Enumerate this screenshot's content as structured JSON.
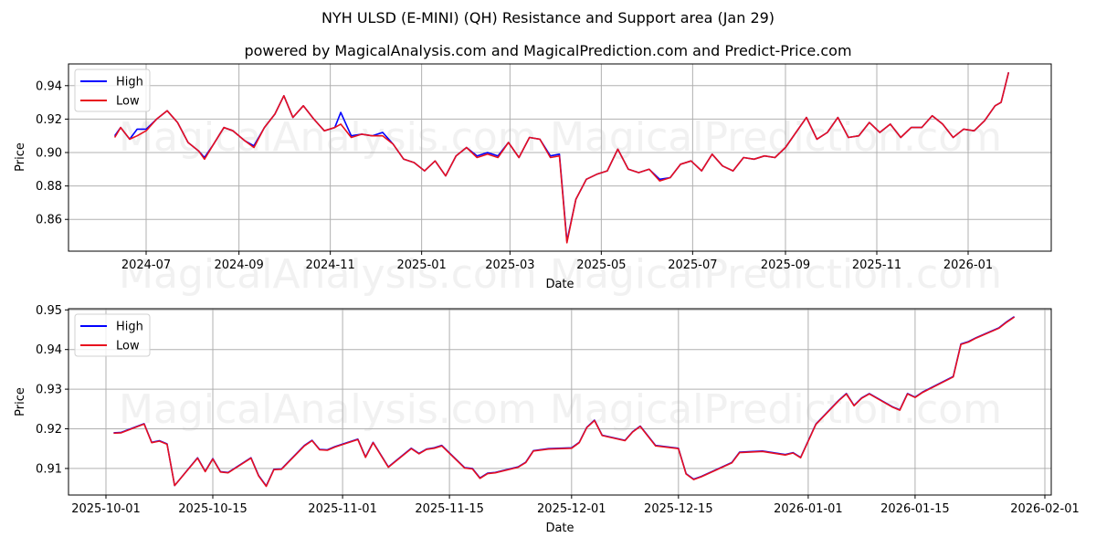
{
  "title": "NYH ULSD (E-MINI) (QH) Resistance and Support area (Jan 29)",
  "subtitle": "powered by MagicalAnalysis.com and MagicalPrediction.com and Predict-Price.com",
  "watermarks": [
    "MagicalAnalysis.com",
    "MagicalPrediction.com"
  ],
  "colors": {
    "high": "#0000ff",
    "low": "#e8101e",
    "grid": "#b0b0b0"
  },
  "legend": {
    "high": "High",
    "low": "Low"
  },
  "chart_data": [
    {
      "type": "line",
      "title": "NYH ULSD (E-MINI) (QH) Resistance and Support area (Jan 29)",
      "xlabel": "Date",
      "ylabel": "Price",
      "ylim": [
        0.841,
        0.953
      ],
      "yticks": [
        "0.86",
        "0.88",
        "0.90",
        "0.92",
        "0.94"
      ],
      "xticks": [
        "2024-07",
        "2024-09",
        "2024-11",
        "2025-01",
        "2025-03",
        "2025-05",
        "2025-07",
        "2025-09",
        "2025-11",
        "2026-01"
      ],
      "grid": true,
      "legend_position": "upper left",
      "x": [
        "2024-06-10",
        "2024-06-14",
        "2024-06-20",
        "2024-06-25",
        "2024-07-01",
        "2024-07-08",
        "2024-07-15",
        "2024-07-22",
        "2024-07-29",
        "2024-08-05",
        "2024-08-09",
        "2024-08-15",
        "2024-08-22",
        "2024-08-28",
        "2024-09-05",
        "2024-09-11",
        "2024-09-18",
        "2024-09-25",
        "2024-10-01",
        "2024-10-07",
        "2024-10-14",
        "2024-10-21",
        "2024-10-28",
        "2024-11-04",
        "2024-11-08",
        "2024-11-15",
        "2024-11-22",
        "2024-11-29",
        "2024-12-06",
        "2024-12-13",
        "2024-12-20",
        "2024-12-27",
        "2025-01-03",
        "2025-01-10",
        "2025-01-17",
        "2025-01-24",
        "2025-01-31",
        "2025-02-07",
        "2025-02-14",
        "2025-02-21",
        "2025-02-28",
        "2025-03-07",
        "2025-03-14",
        "2025-03-21",
        "2025-03-28",
        "2025-04-03",
        "2025-04-08",
        "2025-04-14",
        "2025-04-21",
        "2025-04-28",
        "2025-05-05",
        "2025-05-12",
        "2025-05-19",
        "2025-05-26",
        "2025-06-02",
        "2025-06-09",
        "2025-06-16",
        "2025-06-23",
        "2025-06-30",
        "2025-07-07",
        "2025-07-14",
        "2025-07-21",
        "2025-07-28",
        "2025-08-04",
        "2025-08-11",
        "2025-08-18",
        "2025-08-25",
        "2025-09-01",
        "2025-09-08",
        "2025-09-15",
        "2025-09-22",
        "2025-09-29",
        "2025-10-06",
        "2025-10-13",
        "2025-10-20",
        "2025-10-27",
        "2025-11-03",
        "2025-11-10",
        "2025-11-17",
        "2025-11-24",
        "2025-12-01",
        "2025-12-08",
        "2025-12-15",
        "2025-12-22",
        "2025-12-29",
        "2026-01-05",
        "2026-01-12",
        "2026-01-19",
        "2026-01-23",
        "2026-01-28"
      ],
      "series": [
        {
          "name": "High",
          "values": [
            0.91,
            0.915,
            0.908,
            0.914,
            0.914,
            0.92,
            0.925,
            0.918,
            0.906,
            0.901,
            0.897,
            0.905,
            0.915,
            0.913,
            0.907,
            0.904,
            0.915,
            0.923,
            0.934,
            0.921,
            0.928,
            0.92,
            0.913,
            0.915,
            0.924,
            0.91,
            0.911,
            0.91,
            0.912,
            0.905,
            0.896,
            0.894,
            0.889,
            0.895,
            0.886,
            0.898,
            0.903,
            0.898,
            0.9,
            0.898,
            0.906,
            0.897,
            0.909,
            0.908,
            0.898,
            0.899,
            0.847,
            0.872,
            0.884,
            0.887,
            0.889,
            0.902,
            0.89,
            0.888,
            0.89,
            0.884,
            0.885,
            0.893,
            0.895,
            0.889,
            0.899,
            0.892,
            0.889,
            0.897,
            0.896,
            0.898,
            0.897,
            0.903,
            0.912,
            0.921,
            0.908,
            0.912,
            0.921,
            0.909,
            0.91,
            0.918,
            0.912,
            0.917,
            0.909,
            0.915,
            0.915,
            0.922,
            0.917,
            0.909,
            0.914,
            0.913,
            0.919,
            0.928,
            0.93,
            0.948
          ]
        },
        {
          "name": "Low",
          "values": [
            0.909,
            0.915,
            0.908,
            0.91,
            0.913,
            0.92,
            0.925,
            0.918,
            0.906,
            0.901,
            0.896,
            0.905,
            0.915,
            0.913,
            0.907,
            0.903,
            0.915,
            0.923,
            0.934,
            0.921,
            0.928,
            0.92,
            0.913,
            0.915,
            0.917,
            0.909,
            0.911,
            0.91,
            0.91,
            0.905,
            0.896,
            0.894,
            0.889,
            0.895,
            0.886,
            0.898,
            0.903,
            0.897,
            0.899,
            0.897,
            0.906,
            0.897,
            0.909,
            0.908,
            0.897,
            0.898,
            0.846,
            0.872,
            0.884,
            0.887,
            0.889,
            0.902,
            0.89,
            0.888,
            0.89,
            0.883,
            0.885,
            0.893,
            0.895,
            0.889,
            0.899,
            0.892,
            0.889,
            0.897,
            0.896,
            0.898,
            0.897,
            0.903,
            0.912,
            0.921,
            0.908,
            0.912,
            0.921,
            0.909,
            0.91,
            0.918,
            0.912,
            0.917,
            0.909,
            0.915,
            0.915,
            0.922,
            0.917,
            0.909,
            0.914,
            0.913,
            0.919,
            0.928,
            0.93,
            0.948
          ]
        }
      ]
    },
    {
      "type": "line",
      "xlabel": "Date",
      "ylabel": "Price",
      "ylim": [
        0.9033,
        0.9503
      ],
      "yticks": [
        "0.91",
        "0.92",
        "0.93",
        "0.94",
        "0.95"
      ],
      "xticks": [
        "2025-10-01",
        "2025-10-15",
        "2025-11-01",
        "2025-11-15",
        "2025-12-01",
        "2025-12-15",
        "2026-01-01",
        "2026-01-15",
        "2026-02-01"
      ],
      "grid": true,
      "legend_position": "upper left",
      "x": [
        "2025-10-02",
        "2025-10-03",
        "2025-10-06",
        "2025-10-07",
        "2025-10-08",
        "2025-10-09",
        "2025-10-10",
        "2025-10-13",
        "2025-10-14",
        "2025-10-15",
        "2025-10-16",
        "2025-10-17",
        "2025-10-20",
        "2025-10-21",
        "2025-10-22",
        "2025-10-23",
        "2025-10-24",
        "2025-10-27",
        "2025-10-28",
        "2025-10-29",
        "2025-10-30",
        "2025-10-31",
        "2025-11-03",
        "2025-11-04",
        "2025-11-05",
        "2025-11-07",
        "2025-11-10",
        "2025-11-11",
        "2025-11-12",
        "2025-11-13",
        "2025-11-14",
        "2025-11-17",
        "2025-11-18",
        "2025-11-19",
        "2025-11-20",
        "2025-11-21",
        "2025-11-24",
        "2025-11-25",
        "2025-11-26",
        "2025-11-28",
        "2025-12-01",
        "2025-12-02",
        "2025-12-03",
        "2025-12-04",
        "2025-12-05",
        "2025-12-08",
        "2025-12-09",
        "2025-12-10",
        "2025-12-12",
        "2025-12-15",
        "2025-12-16",
        "2025-12-17",
        "2025-12-18",
        "2025-12-22",
        "2025-12-23",
        "2025-12-26",
        "2025-12-29",
        "2025-12-30",
        "2025-12-31",
        "2026-01-02",
        "2026-01-05",
        "2026-01-06",
        "2026-01-07",
        "2026-01-08",
        "2026-01-09",
        "2026-01-12",
        "2026-01-13",
        "2026-01-14",
        "2026-01-15",
        "2026-01-16",
        "2026-01-20",
        "2026-01-21",
        "2026-01-22",
        "2026-01-23",
        "2026-01-26",
        "2026-01-27",
        "2026-01-28"
      ],
      "series": [
        {
          "name": "High",
          "values": [
            0.919,
            0.9191,
            0.9213,
            0.9166,
            0.917,
            0.9162,
            0.9057,
            0.9127,
            0.9093,
            0.9125,
            0.9092,
            0.909,
            0.9127,
            0.9082,
            0.9056,
            0.9098,
            0.9099,
            0.9158,
            0.9171,
            0.9148,
            0.9147,
            0.9155,
            0.9174,
            0.9129,
            0.9166,
            0.9104,
            0.9151,
            0.9138,
            0.9149,
            0.9152,
            0.9158,
            0.9102,
            0.91,
            0.9076,
            0.9088,
            0.909,
            0.9104,
            0.9116,
            0.9145,
            0.915,
            0.9152,
            0.9166,
            0.9204,
            0.9222,
            0.9184,
            0.9171,
            0.9193,
            0.9207,
            0.9158,
            0.9151,
            0.9087,
            0.9073,
            0.908,
            0.9115,
            0.9141,
            0.9144,
            0.9135,
            0.914,
            0.9128,
            0.9212,
            0.9272,
            0.9289,
            0.9259,
            0.9278,
            0.9289,
            0.9256,
            0.9248,
            0.9289,
            0.928,
            0.9293,
            0.9332,
            0.9414,
            0.942,
            0.943,
            0.9455,
            0.947,
            0.9483
          ]
        },
        {
          "name": "Low",
          "values": [
            0.9189,
            0.919,
            0.9212,
            0.9165,
            0.9169,
            0.9161,
            0.9057,
            0.9126,
            0.9092,
            0.9124,
            0.9091,
            0.9089,
            0.9126,
            0.9081,
            0.9055,
            0.9097,
            0.9098,
            0.9157,
            0.917,
            0.9147,
            0.9146,
            0.9154,
            0.9173,
            0.9128,
            0.9165,
            0.9103,
            0.915,
            0.9137,
            0.9148,
            0.9151,
            0.9157,
            0.9101,
            0.9099,
            0.9075,
            0.9087,
            0.9089,
            0.9103,
            0.9115,
            0.9144,
            0.9149,
            0.9151,
            0.9165,
            0.9203,
            0.9221,
            0.9183,
            0.917,
            0.9192,
            0.9206,
            0.9157,
            0.915,
            0.9086,
            0.9072,
            0.9079,
            0.9114,
            0.914,
            0.9143,
            0.9134,
            0.9139,
            0.9127,
            0.9211,
            0.9271,
            0.9288,
            0.9258,
            0.9277,
            0.9288,
            0.9255,
            0.9247,
            0.9288,
            0.9279,
            0.9292,
            0.9331,
            0.9413,
            0.9419,
            0.9429,
            0.9454,
            0.9469,
            0.9482
          ]
        }
      ]
    }
  ]
}
